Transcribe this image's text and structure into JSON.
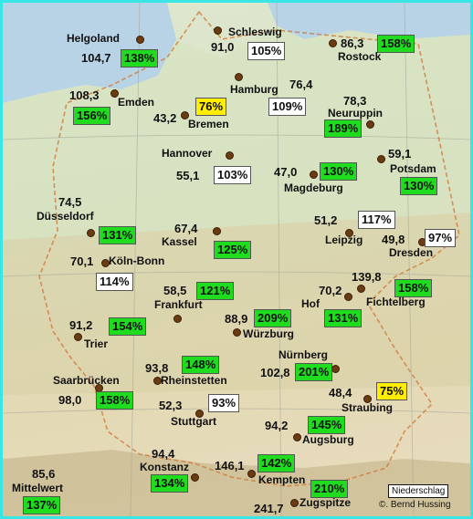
{
  "stations": [
    {
      "name": "Helgoland",
      "value": "104,7",
      "percent": "138%",
      "color": "green"
    },
    {
      "name": "Schleswig",
      "value": "91,0",
      "percent": "105%",
      "color": "white"
    },
    {
      "name": "Rostock",
      "value": "86,3",
      "percent": "158%",
      "color": "green"
    },
    {
      "name": "Emden",
      "value": "108,3",
      "percent": "156%",
      "color": "green"
    },
    {
      "name": "Bremen",
      "value": "43,2",
      "percent": "76%",
      "color": "yellow"
    },
    {
      "name": "Hamburg",
      "value": "76,4",
      "percent": "109%",
      "color": "white"
    },
    {
      "name": "Neuruppin",
      "value": "78,3",
      "percent": "189%",
      "color": "green"
    },
    {
      "name": "Hannover",
      "value": "55,1",
      "percent": "103%",
      "color": "white"
    },
    {
      "name": "Magdeburg",
      "value": "47,0",
      "percent": "130%",
      "color": "green"
    },
    {
      "name": "Potsdam",
      "value": "59,1",
      "percent": "130%",
      "color": "green"
    },
    {
      "name": "Düsseldorf",
      "value": "74,5",
      "percent": "131%",
      "color": "green"
    },
    {
      "name": "Kassel",
      "value": "67,4",
      "percent": "125%",
      "color": "green"
    },
    {
      "name": "Leipzig",
      "value": "51,2",
      "percent": "117%",
      "color": "white"
    },
    {
      "name": "Dresden",
      "value": "49,8",
      "percent": "97%",
      "color": "white"
    },
    {
      "name": "Köln-Bonn",
      "value": "70,1",
      "percent": "114%",
      "color": "white"
    },
    {
      "name": "Frankfurt",
      "value": "58,5",
      "percent": "121%",
      "color": "green"
    },
    {
      "name": "Hof",
      "value": "70,2",
      "percent": "131%",
      "color": "green"
    },
    {
      "name": "Fichtelberg",
      "value": "139,8",
      "percent": "158%",
      "color": "green"
    },
    {
      "name": "Würzburg",
      "value": "88,9",
      "percent": "209%",
      "color": "green"
    },
    {
      "name": "Trier",
      "value": "91,2",
      "percent": "154%",
      "color": "green"
    },
    {
      "name": "Nürnberg",
      "value": "102,8",
      "percent": "201%",
      "color": "green"
    },
    {
      "name": "Rheinstetten",
      "value": "93,8",
      "percent": "148%",
      "color": "green"
    },
    {
      "name": "Saarbrücken",
      "value": "98,0",
      "percent": "158%",
      "color": "green"
    },
    {
      "name": "Stuttgart",
      "value": "52,3",
      "percent": "93%",
      "color": "white"
    },
    {
      "name": "Straubing",
      "value": "48,4",
      "percent": "75%",
      "color": "yellow"
    },
    {
      "name": "Augsburg",
      "value": "94,2",
      "percent": "145%",
      "color": "green"
    },
    {
      "name": "Konstanz",
      "value": "94,4",
      "percent": "134%",
      "color": "green"
    },
    {
      "name": "Kempten",
      "value": "146,1",
      "percent": "142%",
      "color": "green"
    },
    {
      "name": "Zugspitze",
      "value": "241,7",
      "percent": "210%",
      "color": "green"
    },
    {
      "name": "Mittelwert",
      "value": "85,6",
      "percent": "137%",
      "color": "green"
    }
  ],
  "legend": {
    "label": "Niederschlag"
  },
  "credit": "©. Bernd Hussing",
  "colors": {
    "green": "#1fdc1f",
    "white": "#ffffff",
    "yellow": "#ffee00",
    "frame": "#39e6e6"
  }
}
